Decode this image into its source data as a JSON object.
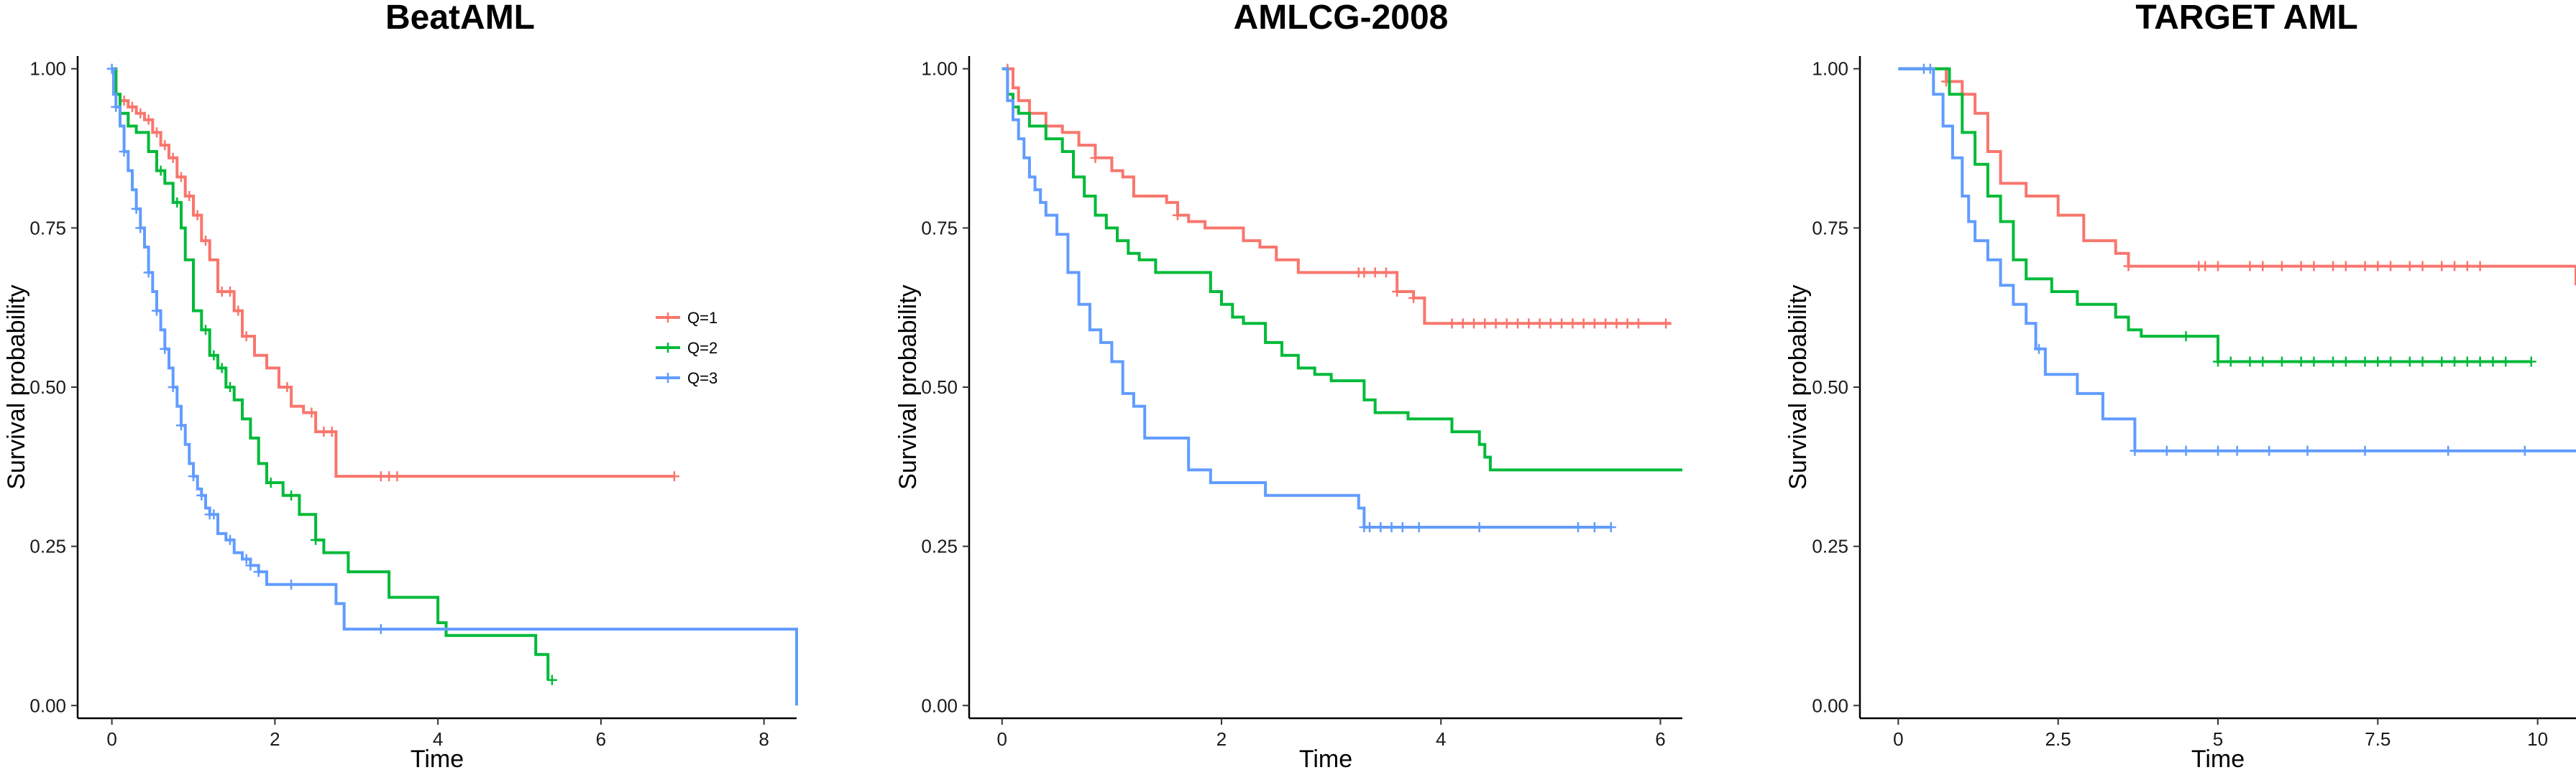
{
  "chart_data": [
    {
      "type": "line",
      "subtype": "kaplan-meier",
      "title": "BeatAML",
      "xlabel": "Time",
      "ylabel": "Survival probability",
      "xlim": [
        -0.42,
        8.4
      ],
      "ylim": [
        -0.02,
        1.02
      ],
      "xticks": [
        0,
        2,
        4,
        6,
        8
      ],
      "yticks": [
        "0.00",
        "0.25",
        "0.50",
        "0.75",
        "1.00"
      ],
      "legend": {
        "position": "right",
        "entries": [
          "Q=1",
          "Q=2",
          "Q=3"
        ]
      },
      "series": [
        {
          "name": "Q=1",
          "color": "#F8766D",
          "x": [
            0,
            0.05,
            0.1,
            0.2,
            0.3,
            0.4,
            0.5,
            0.6,
            0.7,
            0.8,
            0.9,
            1.0,
            1.1,
            1.2,
            1.3,
            1.5,
            1.6,
            1.75,
            1.9,
            2.05,
            2.2,
            2.35,
            2.5,
            2.75,
            3.5,
            6.9
          ],
          "y": [
            1.0,
            0.96,
            0.95,
            0.94,
            0.93,
            0.92,
            0.9,
            0.88,
            0.86,
            0.83,
            0.8,
            0.77,
            0.73,
            0.7,
            0.65,
            0.62,
            0.58,
            0.55,
            0.53,
            0.5,
            0.47,
            0.46,
            0.43,
            0.36,
            0.36,
            0.36
          ],
          "censor_x": [
            0.15,
            0.25,
            0.35,
            0.45,
            0.55,
            0.65,
            0.75,
            0.85,
            0.95,
            1.05,
            1.15,
            1.35,
            1.45,
            1.55,
            1.65,
            2.15,
            2.45,
            2.6,
            2.7,
            3.3,
            3.4,
            3.5,
            6.9
          ]
        },
        {
          "name": "Q=2",
          "color": "#00BA38",
          "x": [
            0,
            0.05,
            0.1,
            0.2,
            0.3,
            0.45,
            0.55,
            0.65,
            0.75,
            0.85,
            0.9,
            1.0,
            1.1,
            1.2,
            1.3,
            1.4,
            1.5,
            1.6,
            1.7,
            1.8,
            1.9,
            2.1,
            2.3,
            2.5,
            2.6,
            2.9,
            3.2,
            3.4,
            4.0,
            4.1,
            5.0,
            5.2,
            5.35
          ],
          "y": [
            1.0,
            0.96,
            0.93,
            0.91,
            0.9,
            0.87,
            0.84,
            0.82,
            0.79,
            0.75,
            0.7,
            0.62,
            0.59,
            0.55,
            0.53,
            0.5,
            0.48,
            0.45,
            0.42,
            0.38,
            0.35,
            0.33,
            0.3,
            0.26,
            0.24,
            0.21,
            0.21,
            0.17,
            0.13,
            0.11,
            0.11,
            0.08,
            0.04
          ],
          "censor_x": [
            0.6,
            0.8,
            1.15,
            1.25,
            1.35,
            1.45,
            1.95,
            2.2,
            2.5,
            5.4
          ]
        },
        {
          "name": "Q=3",
          "color": "#619CFF",
          "x": [
            0,
            0.02,
            0.05,
            0.1,
            0.15,
            0.2,
            0.25,
            0.3,
            0.35,
            0.4,
            0.45,
            0.5,
            0.55,
            0.6,
            0.65,
            0.7,
            0.75,
            0.8,
            0.85,
            0.9,
            0.95,
            1.0,
            1.05,
            1.1,
            1.15,
            1.2,
            1.3,
            1.4,
            1.5,
            1.6,
            1.7,
            1.8,
            1.9,
            2.1,
            2.3,
            2.5,
            2.75,
            2.85,
            3.5,
            4.0,
            8.4,
            8.4
          ],
          "y": [
            1.0,
            0.96,
            0.94,
            0.91,
            0.87,
            0.84,
            0.81,
            0.78,
            0.75,
            0.72,
            0.68,
            0.65,
            0.62,
            0.59,
            0.56,
            0.53,
            0.5,
            0.47,
            0.44,
            0.41,
            0.38,
            0.36,
            0.34,
            0.33,
            0.31,
            0.3,
            0.27,
            0.26,
            0.24,
            0.23,
            0.22,
            0.21,
            0.19,
            0.19,
            0.19,
            0.19,
            0.16,
            0.12,
            0.12,
            0.12,
            0.12,
            0.0
          ],
          "censor_x": [
            0,
            0.05,
            0.15,
            0.3,
            0.35,
            0.45,
            0.55,
            0.65,
            0.75,
            0.85,
            1.0,
            1.1,
            1.2,
            1.25,
            1.45,
            1.65,
            1.7,
            1.8,
            2.2,
            3.3
          ]
        }
      ]
    },
    {
      "type": "line",
      "subtype": "kaplan-meier",
      "title": "AMLCG-2008",
      "xlabel": "Time",
      "ylabel": "Survival probability",
      "xlim": [
        -0.3,
        6.2
      ],
      "ylim": [
        -0.02,
        1.02
      ],
      "xticks": [
        0,
        2,
        4,
        6
      ],
      "yticks": [
        "0.00",
        "0.25",
        "0.50",
        "0.75",
        "1.00"
      ],
      "series": [
        {
          "name": "Q=1",
          "color": "#F8766D",
          "x": [
            0,
            0.1,
            0.15,
            0.25,
            0.4,
            0.55,
            0.7,
            0.85,
            1.0,
            1.1,
            1.2,
            1.5,
            1.6,
            1.7,
            1.85,
            2.2,
            2.35,
            2.5,
            2.7,
            3.3,
            3.6,
            3.75,
            3.85,
            6.1
          ],
          "y": [
            1.0,
            0.97,
            0.95,
            0.93,
            0.91,
            0.9,
            0.88,
            0.86,
            0.84,
            0.83,
            0.8,
            0.79,
            0.77,
            0.76,
            0.75,
            0.73,
            0.72,
            0.7,
            0.68,
            0.68,
            0.65,
            0.64,
            0.6,
            0.6
          ],
          "censor_x": [
            0.05,
            0.85,
            1.6,
            3.25,
            3.3,
            3.4,
            3.5,
            3.6,
            3.75,
            4.1,
            4.2,
            4.3,
            4.4,
            4.5,
            4.6,
            4.7,
            4.8,
            4.9,
            5.0,
            5.1,
            5.2,
            5.3,
            5.4,
            5.5,
            5.6,
            5.7,
            5.8,
            6.05
          ]
        },
        {
          "name": "Q=2",
          "color": "#00BA38",
          "x": [
            0,
            0.05,
            0.1,
            0.15,
            0.25,
            0.4,
            0.55,
            0.65,
            0.75,
            0.85,
            0.95,
            1.05,
            1.15,
            1.25,
            1.4,
            1.7,
            1.9,
            2.0,
            2.1,
            2.2,
            2.4,
            2.55,
            2.7,
            2.85,
            3.0,
            3.3,
            3.4,
            3.7,
            4.1,
            4.35,
            4.4,
            4.45,
            6.2
          ],
          "y": [
            1.0,
            0.96,
            0.94,
            0.93,
            0.91,
            0.89,
            0.87,
            0.83,
            0.8,
            0.77,
            0.75,
            0.73,
            0.71,
            0.7,
            0.68,
            0.68,
            0.65,
            0.63,
            0.61,
            0.6,
            0.57,
            0.55,
            0.53,
            0.52,
            0.51,
            0.48,
            0.46,
            0.45,
            0.43,
            0.41,
            0.39,
            0.37,
            0.37
          ]
        },
        {
          "name": "Q=3",
          "color": "#619CFF",
          "x": [
            0,
            0.05,
            0.1,
            0.15,
            0.2,
            0.25,
            0.3,
            0.35,
            0.4,
            0.5,
            0.6,
            0.7,
            0.8,
            0.9,
            1.0,
            1.1,
            1.2,
            1.3,
            1.6,
            1.7,
            1.9,
            2.1,
            2.4,
            3.1,
            3.25,
            3.3,
            5.55
          ],
          "y": [
            1.0,
            0.95,
            0.92,
            0.89,
            0.86,
            0.83,
            0.81,
            0.79,
            0.77,
            0.74,
            0.68,
            0.63,
            0.59,
            0.57,
            0.54,
            0.49,
            0.47,
            0.42,
            0.42,
            0.37,
            0.35,
            0.35,
            0.33,
            0.33,
            0.31,
            0.28,
            0.28
          ],
          "censor_x": [
            3.3,
            3.35,
            3.45,
            3.55,
            3.65,
            3.8,
            4.35,
            5.25,
            5.4,
            5.55
          ]
        }
      ]
    },
    {
      "type": "line",
      "subtype": "kaplan-meier",
      "title": "TARGET AML",
      "xlabel": "Time",
      "ylabel": "Survival probability",
      "xlim": [
        -0.6,
        10.6
      ],
      "ylim": [
        -0.02,
        1.02
      ],
      "xticks": [
        0,
        2.5,
        5,
        7.5,
        10
      ],
      "xticklabels": [
        "0",
        "2.5",
        "5",
        "7.5",
        "10"
      ],
      "yticks": [
        "0.00",
        "0.25",
        "0.50",
        "0.75",
        "1.00"
      ],
      "series": [
        {
          "name": "Q=1",
          "color": "#F8766D",
          "x": [
            0,
            0.5,
            0.75,
            1.0,
            1.2,
            1.4,
            1.6,
            2.0,
            2.5,
            2.9,
            3.4,
            3.6,
            10.6
          ],
          "y": [
            1.0,
            1.0,
            0.98,
            0.96,
            0.93,
            0.87,
            0.82,
            0.8,
            0.77,
            0.73,
            0.71,
            0.69,
            0.66
          ],
          "censor_x": [
            0.75,
            3.6,
            4.7,
            4.8,
            5.0,
            5.5,
            5.7,
            6.0,
            6.3,
            6.5,
            6.8,
            7.0,
            7.3,
            7.5,
            7.7,
            8.0,
            8.2,
            8.5,
            8.7,
            8.9,
            9.1
          ]
        },
        {
          "name": "Q=2",
          "color": "#00BA38",
          "x": [
            0,
            0.6,
            0.8,
            1.0,
            1.2,
            1.4,
            1.6,
            1.8,
            2.0,
            2.4,
            2.8,
            3.4,
            3.6,
            3.8,
            4.0,
            5.0,
            9.9
          ],
          "y": [
            1.0,
            1.0,
            0.96,
            0.9,
            0.85,
            0.8,
            0.76,
            0.7,
            0.67,
            0.65,
            0.63,
            0.61,
            0.59,
            0.58,
            0.58,
            0.54,
            0.54
          ],
          "censor_x": [
            4.5,
            5.0,
            5.2,
            5.5,
            5.7,
            6.0,
            6.3,
            6.5,
            6.8,
            7.0,
            7.3,
            7.5,
            7.7,
            8.0,
            8.2,
            8.5,
            8.7,
            8.9,
            9.1,
            9.3,
            9.5,
            9.9
          ]
        },
        {
          "name": "Q=3",
          "color": "#619CFF",
          "x": [
            0,
            0.4,
            0.55,
            0.7,
            0.85,
            1.0,
            1.1,
            1.2,
            1.4,
            1.6,
            1.8,
            2.0,
            2.15,
            2.3,
            2.8,
            3.2,
            3.7,
            10.6
          ],
          "y": [
            1.0,
            1.0,
            0.96,
            0.91,
            0.86,
            0.8,
            0.76,
            0.73,
            0.7,
            0.66,
            0.63,
            0.6,
            0.56,
            0.52,
            0.49,
            0.45,
            0.4,
            0.4
          ],
          "censor_x": [
            0.4,
            0.5,
            2.2,
            3.7,
            4.2,
            4.5,
            5.0,
            5.3,
            5.8,
            6.4,
            7.3,
            8.6,
            9.8
          ]
        }
      ]
    }
  ]
}
